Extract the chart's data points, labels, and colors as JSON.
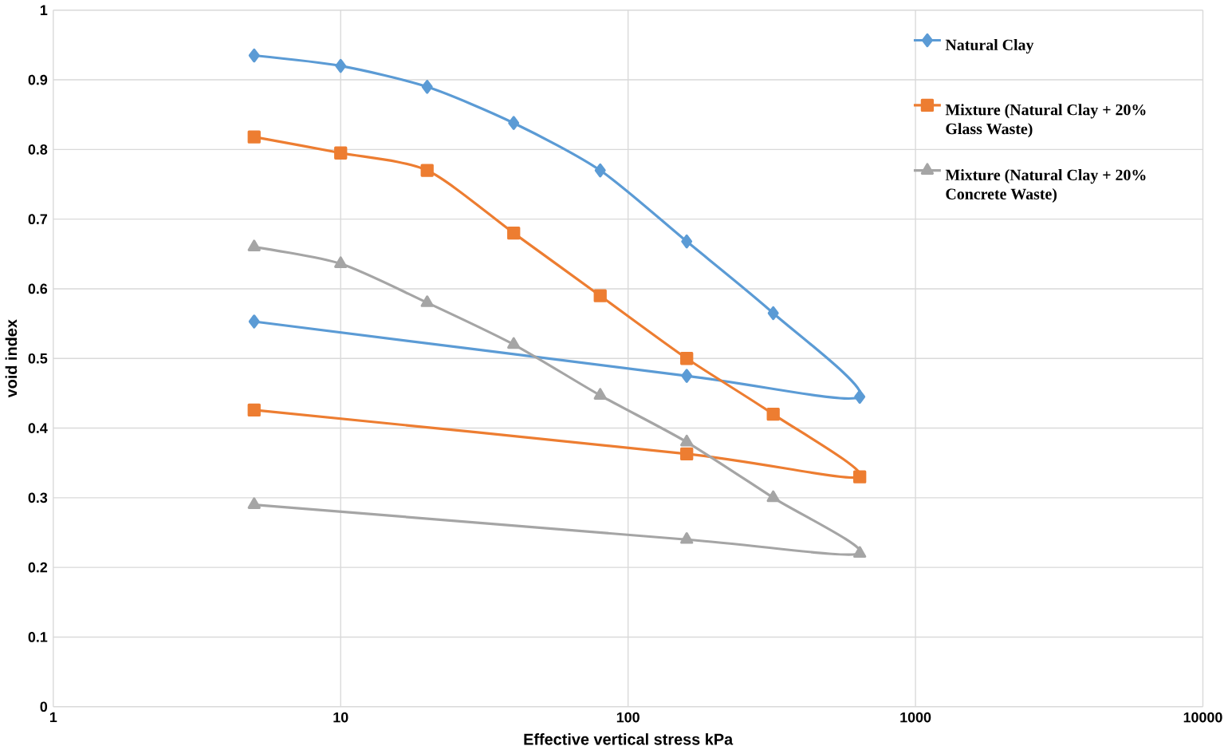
{
  "chart_data": {
    "type": "line",
    "xlabel": "Effective vertical stress kPa",
    "ylabel": "void index",
    "log": "x",
    "xlim": [
      1,
      10000
    ],
    "xticks": [
      1,
      10,
      100,
      1000,
      10000
    ],
    "ylim": [
      0,
      1
    ],
    "yticks": [
      0,
      0.1,
      0.2,
      0.3,
      0.4,
      0.5,
      0.6,
      0.7,
      0.8,
      0.9,
      1
    ],
    "grid": true,
    "legend": "top right",
    "line_style": "solid",
    "series": [
      {
        "name": "Natural Clay",
        "color": "#5b9bd5",
        "marker": "diamond",
        "x": [
          5,
          10,
          20,
          40,
          80,
          160,
          320,
          640,
          160,
          5
        ],
        "values": [
          0.935,
          0.92,
          0.89,
          0.838,
          0.77,
          0.668,
          0.565,
          0.445,
          0.475,
          0.553
        ]
      },
      {
        "name": "Mixture (Natural Clay + 20% Glass Waste)",
        "color": "#ed7d31",
        "marker": "square",
        "x": [
          5,
          10,
          20,
          40,
          80,
          160,
          320,
          640,
          160,
          5
        ],
        "values": [
          0.818,
          0.795,
          0.77,
          0.68,
          0.59,
          0.5,
          0.42,
          0.33,
          0.363,
          0.426
        ]
      },
      {
        "name": "Mixture (Natural Clay + 20% Concrete Waste)",
        "color": "#a5a5a5",
        "marker": "triangle",
        "x": [
          5,
          10,
          20,
          40,
          80,
          160,
          320,
          640,
          160,
          5
        ],
        "values": [
          0.66,
          0.636,
          0.58,
          0.52,
          0.447,
          0.38,
          0.3,
          0.22,
          0.24,
          0.29
        ]
      }
    ]
  }
}
